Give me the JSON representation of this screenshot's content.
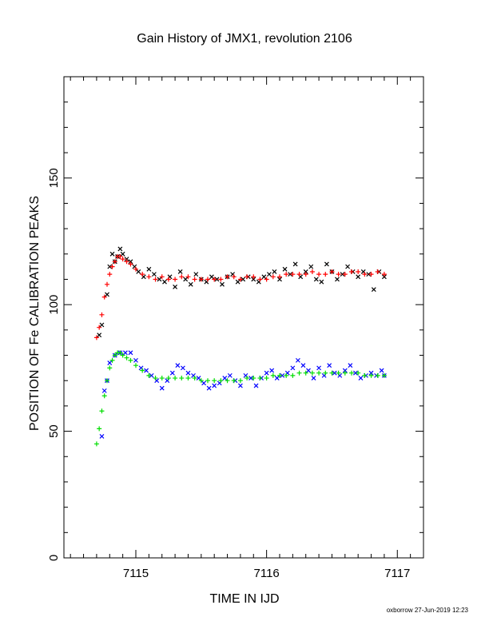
{
  "chart_data": {
    "type": "scatter",
    "title": "Gain History of JMX1, revolution 2106",
    "xlabel": "TIME IN IJD",
    "ylabel": "POSITION OF Fe CALIBRATION PEAKS",
    "xlim": [
      7114.45,
      7117.2
    ],
    "ylim": [
      0,
      190
    ],
    "x_ticks": [
      7115,
      7116,
      7117
    ],
    "y_ticks": [
      0,
      50,
      100,
      150
    ],
    "grid": false,
    "footer": "oxborrow 27-Jun-2019 12:23",
    "series": [
      {
        "marker": "cross",
        "color": "#000000",
        "points": [
          [
            7114.72,
            88
          ],
          [
            7114.74,
            92
          ],
          [
            7114.78,
            104
          ],
          [
            7114.8,
            115
          ],
          [
            7114.82,
            120
          ],
          [
            7114.84,
            117
          ],
          [
            7114.86,
            119
          ],
          [
            7114.88,
            122
          ],
          [
            7114.9,
            120
          ],
          [
            7114.93,
            118
          ],
          [
            7114.96,
            117
          ],
          [
            7114.99,
            115
          ],
          [
            7115.02,
            113
          ],
          [
            7115.06,
            111
          ],
          [
            7115.1,
            114
          ],
          [
            7115.14,
            112
          ],
          [
            7115.18,
            110
          ],
          [
            7115.22,
            109
          ],
          [
            7115.26,
            111
          ],
          [
            7115.3,
            107
          ],
          [
            7115.34,
            113
          ],
          [
            7115.38,
            110
          ],
          [
            7115.42,
            108
          ],
          [
            7115.46,
            112
          ],
          [
            7115.5,
            110
          ],
          [
            7115.54,
            109
          ],
          [
            7115.58,
            111
          ],
          [
            7115.62,
            110
          ],
          [
            7115.66,
            108
          ],
          [
            7115.7,
            111
          ],
          [
            7115.74,
            112
          ],
          [
            7115.78,
            109
          ],
          [
            7115.82,
            110
          ],
          [
            7115.86,
            111
          ],
          [
            7115.9,
            110
          ],
          [
            7115.94,
            109
          ],
          [
            7115.98,
            111
          ],
          [
            7116.02,
            112
          ],
          [
            7116.06,
            113
          ],
          [
            7116.1,
            110
          ],
          [
            7116.14,
            114
          ],
          [
            7116.18,
            112
          ],
          [
            7116.22,
            116
          ],
          [
            7116.26,
            111
          ],
          [
            7116.3,
            113
          ],
          [
            7116.34,
            115
          ],
          [
            7116.38,
            110
          ],
          [
            7116.42,
            109
          ],
          [
            7116.46,
            116
          ],
          [
            7116.5,
            113
          ],
          [
            7116.54,
            110
          ],
          [
            7116.58,
            112
          ],
          [
            7116.62,
            115
          ],
          [
            7116.66,
            113
          ],
          [
            7116.7,
            111
          ],
          [
            7116.74,
            113
          ],
          [
            7116.78,
            112
          ],
          [
            7116.82,
            106
          ],
          [
            7116.86,
            113
          ],
          [
            7116.9,
            111
          ]
        ]
      },
      {
        "marker": "plus",
        "color": "#ff0000",
        "points": [
          [
            7114.7,
            87
          ],
          [
            7114.72,
            91
          ],
          [
            7114.74,
            96
          ],
          [
            7114.76,
            103
          ],
          [
            7114.78,
            108
          ],
          [
            7114.8,
            112
          ],
          [
            7114.82,
            115
          ],
          [
            7114.84,
            117
          ],
          [
            7114.86,
            119
          ],
          [
            7114.88,
            119
          ],
          [
            7114.9,
            118
          ],
          [
            7114.93,
            117
          ],
          [
            7114.96,
            116
          ],
          [
            7115,
            114
          ],
          [
            7115.05,
            112
          ],
          [
            7115.1,
            111
          ],
          [
            7115.15,
            110
          ],
          [
            7115.2,
            111
          ],
          [
            7115.25,
            110
          ],
          [
            7115.3,
            110
          ],
          [
            7115.35,
            111
          ],
          [
            7115.4,
            111
          ],
          [
            7115.45,
            110
          ],
          [
            7115.5,
            110
          ],
          [
            7115.55,
            110
          ],
          [
            7115.6,
            110
          ],
          [
            7115.65,
            110
          ],
          [
            7115.7,
            111
          ],
          [
            7115.75,
            111
          ],
          [
            7115.8,
            110
          ],
          [
            7115.85,
            111
          ],
          [
            7115.9,
            111
          ],
          [
            7115.95,
            110
          ],
          [
            7116,
            110
          ],
          [
            7116.05,
            111
          ],
          [
            7116.1,
            111
          ],
          [
            7116.15,
            112
          ],
          [
            7116.2,
            112
          ],
          [
            7116.25,
            112
          ],
          [
            7116.3,
            112
          ],
          [
            7116.35,
            113
          ],
          [
            7116.4,
            112
          ],
          [
            7116.45,
            112
          ],
          [
            7116.5,
            113
          ],
          [
            7116.55,
            112
          ],
          [
            7116.6,
            112
          ],
          [
            7116.65,
            113
          ],
          [
            7116.7,
            113
          ],
          [
            7116.75,
            112
          ],
          [
            7116.8,
            112
          ],
          [
            7116.85,
            113
          ],
          [
            7116.9,
            112
          ]
        ]
      },
      {
        "marker": "cross",
        "color": "#0000ff",
        "points": [
          [
            7114.74,
            48
          ],
          [
            7114.76,
            66
          ],
          [
            7114.78,
            70
          ],
          [
            7114.8,
            77
          ],
          [
            7114.84,
            80
          ],
          [
            7114.88,
            81
          ],
          [
            7114.92,
            81
          ],
          [
            7114.96,
            81
          ],
          [
            7115,
            78
          ],
          [
            7115.04,
            75
          ],
          [
            7115.08,
            74
          ],
          [
            7115.12,
            72
          ],
          [
            7115.16,
            70
          ],
          [
            7115.2,
            67
          ],
          [
            7115.24,
            70
          ],
          [
            7115.28,
            73
          ],
          [
            7115.32,
            76
          ],
          [
            7115.36,
            75
          ],
          [
            7115.4,
            73
          ],
          [
            7115.44,
            72
          ],
          [
            7115.48,
            71
          ],
          [
            7115.52,
            69
          ],
          [
            7115.56,
            67
          ],
          [
            7115.6,
            68
          ],
          [
            7115.64,
            69
          ],
          [
            7115.68,
            71
          ],
          [
            7115.72,
            72
          ],
          [
            7115.76,
            70
          ],
          [
            7115.8,
            68
          ],
          [
            7115.84,
            72
          ],
          [
            7115.88,
            71
          ],
          [
            7115.92,
            68
          ],
          [
            7115.96,
            71
          ],
          [
            7116,
            73
          ],
          [
            7116.04,
            74
          ],
          [
            7116.08,
            71
          ],
          [
            7116.12,
            72
          ],
          [
            7116.16,
            73
          ],
          [
            7116.2,
            75
          ],
          [
            7116.24,
            78
          ],
          [
            7116.28,
            76
          ],
          [
            7116.32,
            74
          ],
          [
            7116.36,
            71
          ],
          [
            7116.4,
            75
          ],
          [
            7116.44,
            72
          ],
          [
            7116.48,
            76
          ],
          [
            7116.52,
            73
          ],
          [
            7116.56,
            72
          ],
          [
            7116.6,
            74
          ],
          [
            7116.64,
            76
          ],
          [
            7116.68,
            73
          ],
          [
            7116.72,
            71
          ],
          [
            7116.76,
            72
          ],
          [
            7116.8,
            73
          ],
          [
            7116.84,
            72
          ],
          [
            7116.88,
            74
          ],
          [
            7116.9,
            72
          ]
        ]
      },
      {
        "marker": "plus",
        "color": "#00dd00",
        "points": [
          [
            7114.7,
            45
          ],
          [
            7114.72,
            51
          ],
          [
            7114.74,
            58
          ],
          [
            7114.76,
            64
          ],
          [
            7114.78,
            70
          ],
          [
            7114.8,
            75
          ],
          [
            7114.82,
            78
          ],
          [
            7114.84,
            80
          ],
          [
            7114.86,
            81
          ],
          [
            7114.88,
            81
          ],
          [
            7114.9,
            80
          ],
          [
            7114.93,
            79
          ],
          [
            7114.96,
            78
          ],
          [
            7115,
            76
          ],
          [
            7115.05,
            74
          ],
          [
            7115.1,
            72
          ],
          [
            7115.15,
            71
          ],
          [
            7115.2,
            71
          ],
          [
            7115.25,
            71
          ],
          [
            7115.3,
            71
          ],
          [
            7115.35,
            71
          ],
          [
            7115.4,
            71
          ],
          [
            7115.45,
            71
          ],
          [
            7115.5,
            70
          ],
          [
            7115.55,
            70
          ],
          [
            7115.6,
            70
          ],
          [
            7115.65,
            70
          ],
          [
            7115.7,
            70
          ],
          [
            7115.75,
            70
          ],
          [
            7115.8,
            70
          ],
          [
            7115.85,
            71
          ],
          [
            7115.9,
            71
          ],
          [
            7115.95,
            71
          ],
          [
            7116,
            71
          ],
          [
            7116.05,
            72
          ],
          [
            7116.1,
            72
          ],
          [
            7116.15,
            72
          ],
          [
            7116.2,
            72
          ],
          [
            7116.25,
            73
          ],
          [
            7116.3,
            73
          ],
          [
            7116.35,
            73
          ],
          [
            7116.4,
            73
          ],
          [
            7116.45,
            73
          ],
          [
            7116.5,
            73
          ],
          [
            7116.55,
            73
          ],
          [
            7116.6,
            73
          ],
          [
            7116.65,
            73
          ],
          [
            7116.7,
            73
          ],
          [
            7116.75,
            72
          ],
          [
            7116.8,
            72
          ],
          [
            7116.85,
            72
          ],
          [
            7116.9,
            72
          ]
        ]
      }
    ]
  }
}
